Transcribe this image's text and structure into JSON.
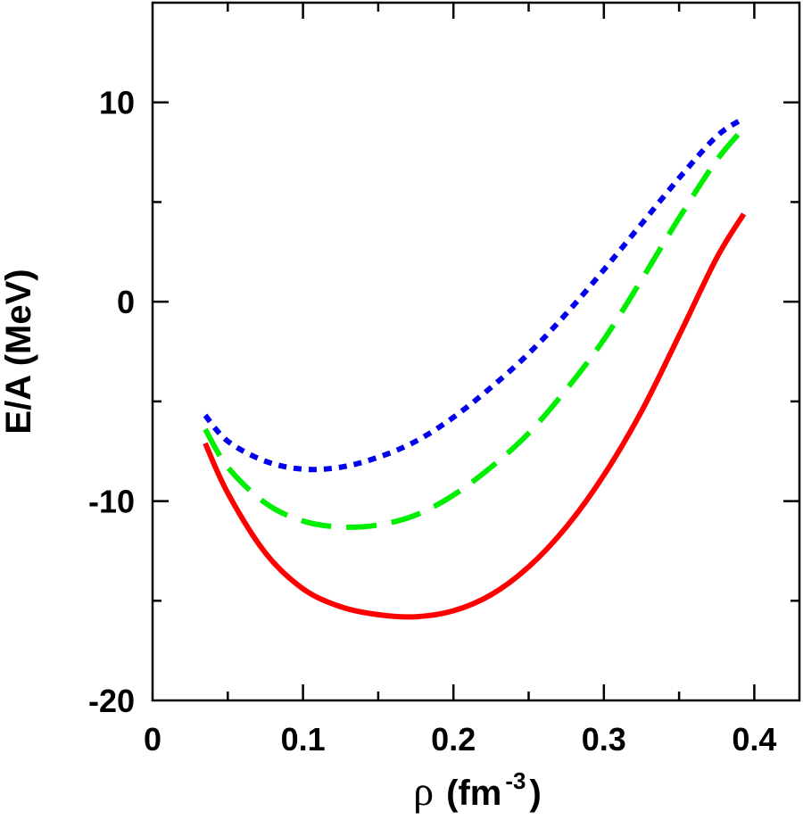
{
  "chart_data": {
    "type": "line",
    "title": "",
    "xlabel": {
      "symbol": "ρ",
      "text": "(fm",
      "superscript": "-3",
      "close": ")"
    },
    "ylabel": "E/A (MeV)",
    "xlim": [
      0,
      0.43
    ],
    "ylim": [
      -20,
      15
    ],
    "x_ticks": [
      0,
      0.1,
      0.2,
      0.3,
      0.4
    ],
    "x_tick_labels": [
      "0",
      "0.1",
      "0.2",
      "0.3",
      "0.4"
    ],
    "x_minor_step": 0.05,
    "y_ticks": [
      -20,
      -10,
      0,
      10
    ],
    "y_tick_labels": [
      "-20",
      "-10",
      "0",
      "10"
    ],
    "y_minor_step": 5,
    "grid": false,
    "legend": "none",
    "series": [
      {
        "name": "solid-red",
        "color": "#ff0000",
        "dash": "solid",
        "x": [
          0.035,
          0.05,
          0.075,
          0.1,
          0.125,
          0.15,
          0.175,
          0.2,
          0.225,
          0.25,
          0.275,
          0.3,
          0.325,
          0.35,
          0.375,
          0.393
        ],
        "y": [
          -7.1,
          -9.6,
          -12.6,
          -14.4,
          -15.3,
          -15.7,
          -15.8,
          -15.5,
          -14.7,
          -13.3,
          -11.3,
          -8.7,
          -5.5,
          -1.7,
          2.2,
          4.4
        ]
      },
      {
        "name": "dashed-green",
        "color": "#00ee00",
        "dash": "dashed",
        "x": [
          0.035,
          0.05,
          0.075,
          0.1,
          0.125,
          0.15,
          0.175,
          0.2,
          0.225,
          0.25,
          0.275,
          0.3,
          0.325,
          0.35,
          0.375,
          0.393
        ],
        "y": [
          -6.4,
          -8.3,
          -10.1,
          -11.0,
          -11.3,
          -11.2,
          -10.7,
          -9.7,
          -8.3,
          -6.6,
          -4.4,
          -1.9,
          1.1,
          4.2,
          7.1,
          8.7
        ]
      },
      {
        "name": "dotted-blue",
        "color": "#0000ee",
        "dash": "dotted",
        "x": [
          0.035,
          0.05,
          0.075,
          0.1,
          0.125,
          0.15,
          0.175,
          0.2,
          0.225,
          0.25,
          0.275,
          0.3,
          0.325,
          0.35,
          0.375,
          0.393
        ],
        "y": [
          -5.7,
          -7.0,
          -8.0,
          -8.4,
          -8.3,
          -7.8,
          -7.0,
          -5.8,
          -4.3,
          -2.6,
          -0.6,
          1.6,
          3.9,
          6.2,
          8.3,
          9.2
        ]
      }
    ]
  }
}
